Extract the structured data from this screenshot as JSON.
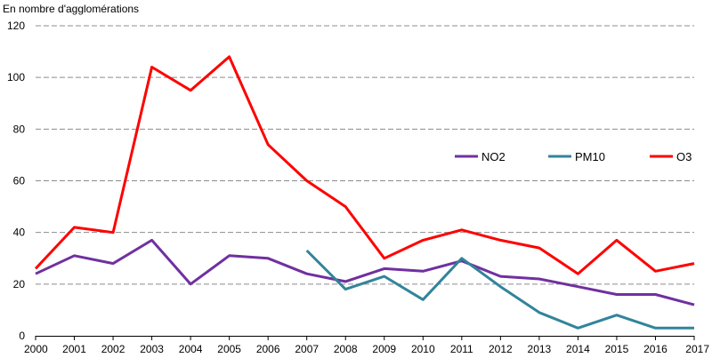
{
  "chart_data": {
    "type": "line",
    "title": "",
    "ylabel": "En nombre d'agglomérations",
    "xlabel": "",
    "ylim": [
      0,
      120
    ],
    "yticks": [
      0,
      20,
      40,
      60,
      80,
      100,
      120
    ],
    "grid": true,
    "legend_position": "right",
    "categories": [
      "2000",
      "2001",
      "2002",
      "2003",
      "2004",
      "2005",
      "2006",
      "2007",
      "2008",
      "2009",
      "2010",
      "2011",
      "2012",
      "2013",
      "2014",
      "2015",
      "2016",
      "2017"
    ],
    "series": [
      {
        "name": "NO2",
        "color": "#7030a0",
        "values": [
          24,
          31,
          28,
          37,
          20,
          31,
          30,
          24,
          21,
          26,
          25,
          29,
          23,
          22,
          19,
          16,
          16,
          12
        ]
      },
      {
        "name": "PM10",
        "color": "#31849b",
        "values": [
          null,
          null,
          null,
          null,
          null,
          null,
          null,
          33,
          18,
          23,
          14,
          30,
          19,
          9,
          3,
          8,
          3,
          3
        ]
      },
      {
        "name": "O3",
        "color": "#ff0000",
        "values": [
          26,
          42,
          40,
          104,
          95,
          108,
          74,
          60,
          50,
          30,
          37,
          41,
          37,
          34,
          24,
          37,
          25,
          28
        ]
      }
    ]
  }
}
